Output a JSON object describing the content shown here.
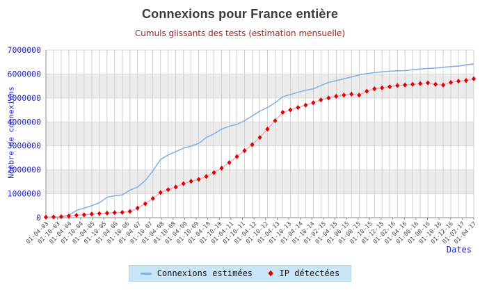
{
  "chart_data": {
    "type": "line",
    "title": "Connexions pour France entière",
    "subtitle": "Cumuls glissants des tests (estimation mensuelle)",
    "xlabel": "Dates",
    "ylabel": "Nombre de connexions",
    "ylim": [
      0,
      7000000
    ],
    "y_ticks": [
      0,
      1000000,
      2000000,
      3000000,
      4000000,
      5000000,
      6000000,
      7000000
    ],
    "grid": true,
    "background_bands": "alternating gray/white per 1000000",
    "legend_position": "bottom",
    "x_tick_labels": [
      "01-04-03",
      "01-10-03",
      "01-04-04",
      "01-10-04",
      "01-04-05",
      "01-10-05",
      "01-04-06",
      "01-10-06",
      "01-04-07",
      "01-10-07",
      "01-04-08",
      "01-10-08",
      "01-04-09",
      "01-10-09",
      "01-04-10",
      "01-10-10",
      "01-04-11",
      "01-10-11",
      "01-04-12",
      "01-10-12",
      "01-04-13",
      "01-10-13",
      "01-04-14",
      "01-10-14",
      "01-02-15",
      "01-04-15",
      "01-06-15",
      "01-08-15",
      "01-10-15",
      "01-12-15",
      "01-02-16",
      "01-04-16",
      "01-06-16",
      "01-08-16",
      "01-10-16",
      "01-12-16",
      "01-02-17",
      "01-04-17"
    ],
    "series": [
      {
        "name": "Connexions estimées",
        "marker": "none",
        "color": "#84b1e3",
        "values": [
          0,
          20000,
          50000,
          100000,
          300000,
          400000,
          500000,
          620000,
          850000,
          920000,
          950000,
          1150000,
          1280000,
          1550000,
          1950000,
          2430000,
          2620000,
          2760000,
          2900000,
          2990000,
          3100000,
          3350000,
          3500000,
          3700000,
          3820000,
          3900000,
          4050000,
          4250000,
          4450000,
          4600000,
          4800000,
          5050000,
          5140000,
          5240000,
          5320000,
          5380000,
          5520000,
          5650000,
          5720000,
          5800000,
          5880000,
          5960000,
          6020000,
          6060000,
          6090000,
          6120000,
          6130000,
          6140000,
          6180000,
          6210000,
          6230000,
          6250000,
          6280000,
          6310000,
          6330000,
          6380000,
          6430000
        ]
      },
      {
        "name": "IP détectées",
        "marker": "diamond",
        "color": "#e00000",
        "line_color": "#f5afc0",
        "values": [
          20000,
          30000,
          40000,
          70000,
          100000,
          120000,
          150000,
          170000,
          190000,
          210000,
          220000,
          260000,
          400000,
          580000,
          800000,
          1050000,
          1170000,
          1280000,
          1420000,
          1520000,
          1600000,
          1720000,
          1880000,
          2070000,
          2300000,
          2550000,
          2800000,
          3050000,
          3350000,
          3700000,
          4050000,
          4400000,
          4500000,
          4600000,
          4700000,
          4800000,
          4920000,
          5000000,
          5070000,
          5120000,
          5160000,
          5120000,
          5280000,
          5380000,
          5420000,
          5470000,
          5520000,
          5540000,
          5570000,
          5600000,
          5630000,
          5570000,
          5540000,
          5650000,
          5700000,
          5730000,
          5800000
        ]
      }
    ],
    "colors": {
      "band_gray": "#ececec",
      "grid_line": "#cfcfcf",
      "axis_line": "#8a8a8a",
      "y_tick_text": "#2222cc",
      "x_tick_text": "#4a4a4a",
      "title_text": "#3a3a3a",
      "subtitle_text": "#9b1c1c",
      "legend_background": "#c9e5f6"
    },
    "legend": {
      "items": [
        {
          "label": "Connexions estimées",
          "swatch": "line-blue"
        },
        {
          "label": "IP détectées",
          "swatch": "diamond-red"
        }
      ]
    },
    "diamond_glyph": "◆"
  }
}
